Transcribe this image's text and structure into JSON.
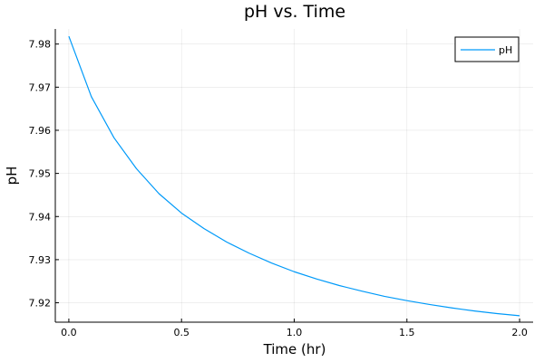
{
  "chart_data": {
    "type": "line",
    "title": "pH vs. Time",
    "xlabel": "Time (hr)",
    "ylabel": "pH",
    "xlim": [
      -0.06,
      2.06
    ],
    "ylim": [
      7.9155,
      7.9835
    ],
    "xticks": [
      0.0,
      0.5,
      1.0,
      1.5,
      2.0
    ],
    "xtick_labels": [
      "0.0",
      "0.5",
      "1.0",
      "1.5",
      "2.0"
    ],
    "yticks": [
      7.92,
      7.93,
      7.94,
      7.95,
      7.96,
      7.97,
      7.98
    ],
    "ytick_labels": [
      "7.92",
      "7.93",
      "7.94",
      "7.95",
      "7.96",
      "7.97",
      "7.98"
    ],
    "grid": true,
    "legend_position": "top-right",
    "series": [
      {
        "name": "pH",
        "color": "#009af9",
        "x": [
          0.0,
          0.1,
          0.2,
          0.3,
          0.4,
          0.5,
          0.6,
          0.7,
          0.8,
          0.9,
          1.0,
          1.1,
          1.2,
          1.3,
          1.4,
          1.5,
          1.6,
          1.7,
          1.8,
          1.9,
          2.0
        ],
        "y": [
          7.9818,
          7.9678,
          7.9583,
          7.9511,
          7.9453,
          7.9408,
          7.9372,
          7.9341,
          7.9315,
          7.9292,
          7.9272,
          7.9255,
          7.924,
          7.9227,
          7.9215,
          7.9205,
          7.9196,
          7.9188,
          7.9181,
          7.9175,
          7.917
        ]
      }
    ]
  }
}
